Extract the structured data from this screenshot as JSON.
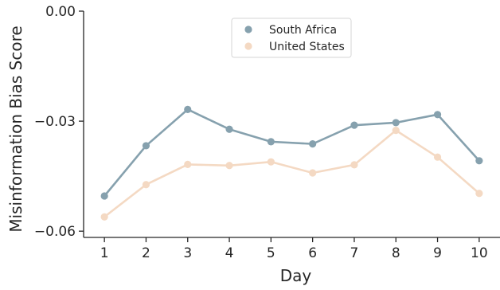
{
  "chart_data": {
    "type": "line",
    "title": "",
    "xlabel": "Day",
    "ylabel": "Misinformation Bias Score",
    "x": [
      1,
      2,
      3,
      4,
      5,
      6,
      7,
      8,
      9,
      10
    ],
    "x_tick_labels": [
      "1",
      "2",
      "3",
      "4",
      "5",
      "6",
      "7",
      "8",
      "9",
      "10"
    ],
    "xlim": [
      0.5,
      10.5
    ],
    "ylim": [
      -0.0617,
      0.0
    ],
    "y_ticks": [
      0.0,
      -0.03,
      -0.06
    ],
    "y_tick_labels": [
      "0.00",
      "−0.03",
      "−0.06"
    ],
    "grid": false,
    "legend_position": "top-center",
    "series": [
      {
        "name": "South Africa",
        "color": "#86a1ae",
        "values": [
          -0.0504,
          -0.0367,
          -0.0268,
          -0.0322,
          -0.0356,
          -0.0362,
          -0.0311,
          -0.0304,
          -0.0282,
          -0.0408
        ]
      },
      {
        "name": "United States",
        "color": "#f4d9c3",
        "values": [
          -0.0561,
          -0.0473,
          -0.0418,
          -0.0421,
          -0.0411,
          -0.0441,
          -0.0419,
          -0.0325,
          -0.0398,
          -0.0497
        ]
      }
    ]
  }
}
